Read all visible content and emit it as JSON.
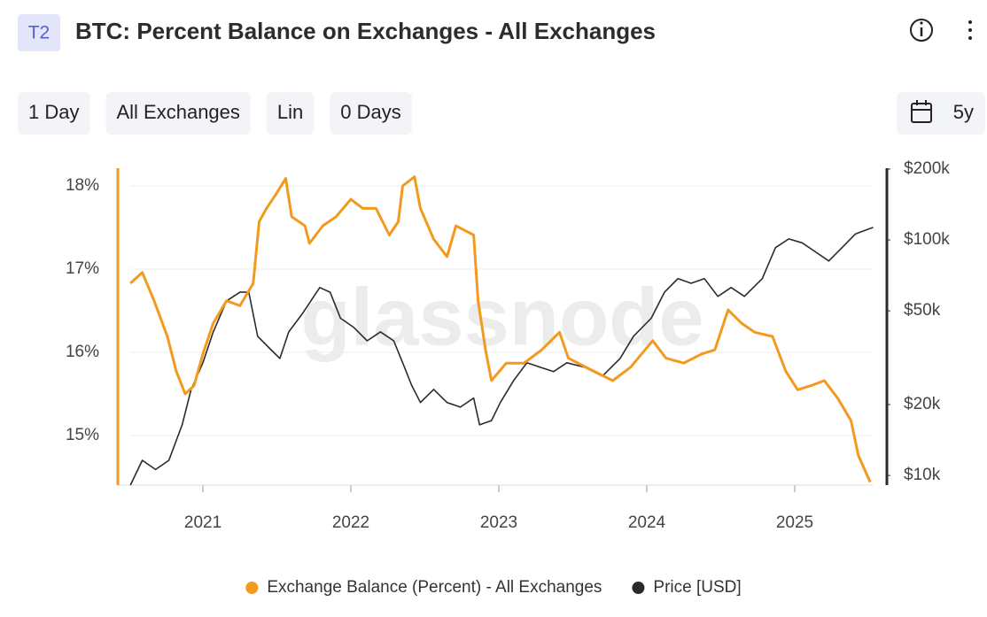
{
  "badge": "T2",
  "controls": [
    "1 Day",
    "All Exchanges",
    "Lin",
    "0 Days"
  ],
  "range": "5y",
  "chart_data": {
    "type": "line",
    "title": "BTC: Percent Balance on Exchanges - All Exchanges",
    "watermark": "glassnode",
    "xlim": [
      2020.425,
      2025.527
    ],
    "xticks": [
      2021,
      2022,
      2023,
      2024,
      2025
    ],
    "ylim": [
      14.404,
      18.213
    ],
    "yticks": [
      {
        "value": 15,
        "label": "15%"
      },
      {
        "value": 16,
        "label": "16%"
      },
      {
        "value": 17,
        "label": "17%"
      },
      {
        "value": 18,
        "label": "18%"
      }
    ],
    "y2lim": [
      9100,
      201700
    ],
    "y2log": true,
    "y2ticks": [
      {
        "value": 10000,
        "label": "$10k"
      },
      {
        "value": 20000,
        "label": "$20k"
      },
      {
        "value": 50000,
        "label": "$50k"
      },
      {
        "value": 100000,
        "label": "$100k"
      },
      {
        "value": 200000,
        "label": "$200k"
      }
    ],
    "grid": true,
    "legend": "bottom",
    "series": [
      {
        "name": "Exchange Balance (Percent) - All Exchanges",
        "color": "#f39a1e",
        "x": [
          2020.51,
          2020.59,
          2020.67,
          2020.76,
          2020.82,
          2020.88,
          2020.94,
          2021.0,
          2021.07,
          2021.16,
          2021.25,
          2021.34,
          2021.38,
          2021.43,
          2021.49,
          2021.56,
          2021.6,
          2021.69,
          2021.72,
          2021.81,
          2021.9,
          2022.0,
          2022.08,
          2022.17,
          2022.26,
          2022.32,
          2022.35,
          2022.43,
          2022.47,
          2022.56,
          2022.65,
          2022.71,
          2022.83,
          2022.86,
          2022.91,
          2022.95,
          2023.05,
          2023.17,
          2023.29,
          2023.41,
          2023.47,
          2023.59,
          2023.77,
          2023.89,
          2024.04,
          2024.13,
          2024.25,
          2024.37,
          2024.46,
          2024.55,
          2024.64,
          2024.73,
          2024.85,
          2024.94,
          2025.02,
          2025.11,
          2025.2,
          2025.29,
          2025.38,
          2025.43,
          2025.47,
          2025.51
        ],
        "values": [
          16.83,
          16.96,
          16.62,
          16.19,
          15.77,
          15.5,
          15.6,
          15.98,
          16.35,
          16.62,
          16.56,
          16.83,
          17.57,
          17.73,
          17.89,
          18.09,
          17.63,
          17.52,
          17.31,
          17.52,
          17.63,
          17.84,
          17.73,
          17.73,
          17.41,
          17.57,
          18.0,
          18.11,
          17.73,
          17.36,
          17.15,
          17.52,
          17.41,
          16.62,
          16.03,
          15.66,
          15.87,
          15.87,
          16.03,
          16.24,
          15.93,
          15.82,
          15.66,
          15.82,
          16.14,
          15.93,
          15.87,
          15.98,
          16.03,
          16.51,
          16.35,
          16.24,
          16.19,
          15.77,
          15.55,
          15.6,
          15.66,
          15.45,
          15.18,
          14.76,
          14.6,
          14.44
        ]
      },
      {
        "name": "Price [USD]",
        "color": "#2b2b2b",
        "axis": "y2",
        "x": [
          2020.51,
          2020.59,
          2020.68,
          2020.77,
          2020.86,
          2020.92,
          2021.0,
          2021.07,
          2021.16,
          2021.25,
          2021.31,
          2021.37,
          2021.46,
          2021.52,
          2021.58,
          2021.67,
          2021.79,
          2021.86,
          2021.93,
          2022.02,
          2022.11,
          2022.2,
          2022.29,
          2022.35,
          2022.41,
          2022.47,
          2022.56,
          2022.65,
          2022.74,
          2022.83,
          2022.87,
          2022.95,
          2023.01,
          2023.1,
          2023.19,
          2023.28,
          2023.37,
          2023.46,
          2023.58,
          2023.7,
          2023.82,
          2023.91,
          2024.03,
          2024.12,
          2024.21,
          2024.3,
          2024.39,
          2024.48,
          2024.57,
          2024.66,
          2024.78,
          2024.87,
          2024.96,
          2025.05,
          2025.14,
          2025.23,
          2025.32,
          2025.41,
          2025.53
        ],
        "values": [
          9100,
          11600,
          10600,
          11600,
          16400,
          23200,
          30100,
          40700,
          55100,
          60000,
          60000,
          39000,
          34200,
          31400,
          40700,
          48400,
          62800,
          60000,
          46500,
          42500,
          37300,
          40700,
          37300,
          30100,
          24200,
          20400,
          23200,
          20400,
          19500,
          21300,
          16400,
          17100,
          20400,
          25300,
          30100,
          28800,
          27600,
          30100,
          28800,
          26400,
          31400,
          39000,
          46500,
          60000,
          68500,
          65500,
          68500,
          57600,
          62800,
          57600,
          68500,
          92800,
          101000,
          97200,
          89000,
          81400,
          92800,
          106000,
          113000
        ]
      }
    ]
  }
}
